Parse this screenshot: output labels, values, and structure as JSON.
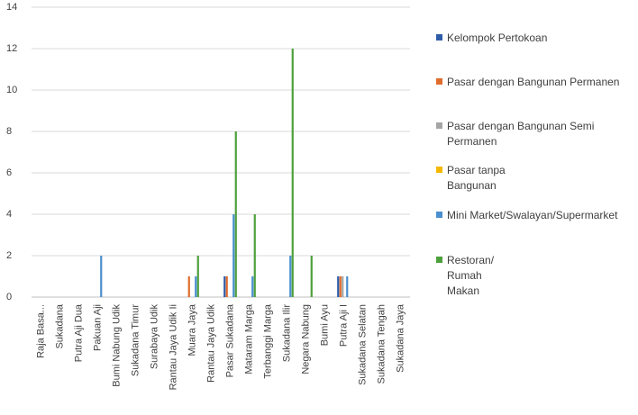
{
  "chart_data": {
    "type": "bar",
    "categories": [
      "Raja Basa...",
      "Sukadana",
      "Putra Aji Dua",
      "Pakuan Aji",
      "Bumi Nabung Udik",
      "Sukadana Timur",
      "Surabaya Udik",
      "Rantau Jaya Udik Ii",
      "Muara Jaya",
      "Rantau Jaya Udik",
      "Pasar Sukadana",
      "Mataram Marga",
      "Terbanggi Marga",
      "Sukadana Ilir",
      "Negara Nabung",
      "Bumi Ayu",
      "Putra Aji I",
      "Sukadana Selatan",
      "Sukadana Tengah",
      "Sukadana Jaya"
    ],
    "series": [
      {
        "name": "Kelompok Pertokoan",
        "color": "#2e5ca8",
        "values": [
          0,
          0,
          0,
          0,
          0,
          0,
          0,
          0,
          0,
          0,
          1,
          0,
          0,
          0,
          0,
          0,
          1,
          0,
          0,
          0
        ]
      },
      {
        "name": "Pasar dengan Bangunan Permanen",
        "color": "#e06c2c",
        "values": [
          0,
          0,
          0,
          0,
          0,
          0,
          0,
          0,
          1,
          0,
          1,
          0,
          0,
          0,
          0,
          0,
          1,
          0,
          0,
          0
        ]
      },
      {
        "name": "Pasar dengan Bangunan Semi Permanen",
        "color": "#a5a5a5",
        "values": [
          0,
          0,
          0,
          0,
          0,
          0,
          0,
          0,
          0,
          0,
          0,
          0,
          0,
          0,
          0,
          0,
          1,
          0,
          0,
          0
        ]
      },
      {
        "name": "Pasar tanpa Bangunan",
        "color": "#f5b800",
        "values": [
          0,
          0,
          0,
          0,
          0,
          0,
          0,
          0,
          0,
          0,
          0,
          0,
          0,
          0,
          0,
          0,
          0,
          0,
          0,
          0
        ]
      },
      {
        "name": "Mini Market/Swalayan/Supermarket",
        "color": "#4a8fcf",
        "values": [
          0,
          0,
          0,
          2,
          0,
          0,
          0,
          0,
          1,
          0,
          4,
          1,
          0,
          2,
          0,
          0,
          1,
          0,
          0,
          0
        ]
      },
      {
        "name": "Restoran/ Rumah Makan",
        "color": "#4ea03c",
        "values": [
          0,
          0,
          0,
          0,
          0,
          0,
          0,
          0,
          2,
          0,
          8,
          4,
          0,
          12,
          2,
          0,
          0,
          0,
          0,
          0
        ]
      }
    ],
    "ylim": [
      0,
      14
    ],
    "yticks": [
      0,
      2,
      4,
      6,
      8,
      10,
      12,
      14
    ],
    "grid": true,
    "legend": "right"
  }
}
